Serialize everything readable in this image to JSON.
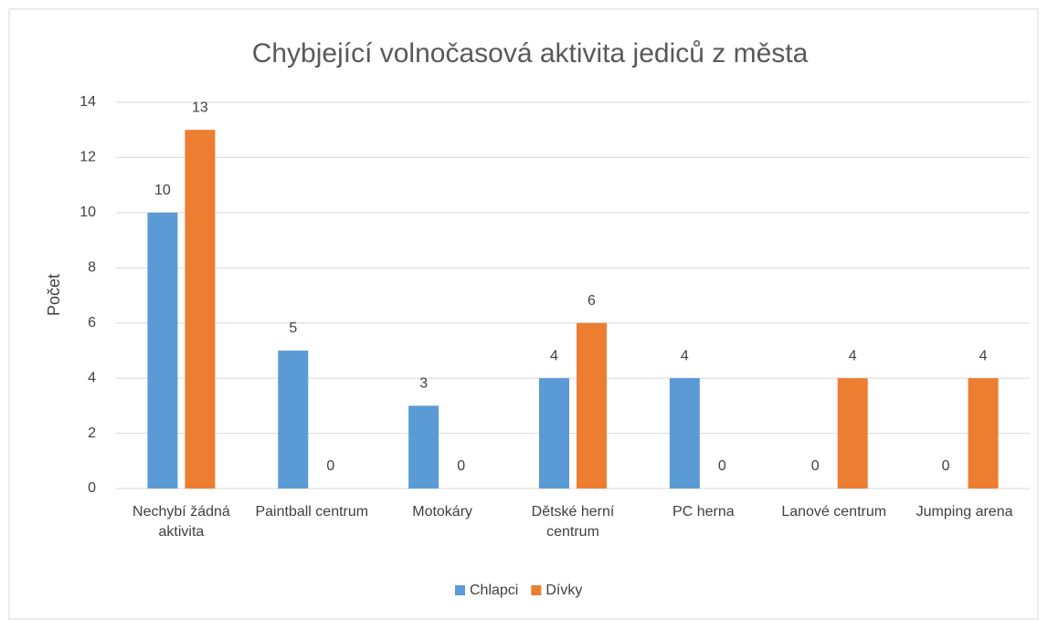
{
  "chart_data": {
    "type": "bar",
    "title": "Chybjející  volnočasová aktivita jediců z města",
    "y_label": "Počet",
    "categories": [
      "Nechybí žádná aktivita",
      "Paintball centrum",
      "Motokáry",
      "Dětské herní centrum",
      "PC herna",
      "Lanové centrum",
      "Jumping arena"
    ],
    "series": [
      {
        "name": "Chlapci",
        "color": "#5b9bd5",
        "values": [
          10,
          5,
          3,
          4,
          4,
          0,
          0
        ]
      },
      {
        "name": "Dívky",
        "color": "#ed7d31",
        "values": [
          13,
          0,
          0,
          6,
          0,
          4,
          4
        ]
      }
    ],
    "ylim": [
      0,
      14
    ],
    "yticks": [
      0,
      2,
      4,
      6,
      8,
      10,
      12,
      14
    ],
    "grid": true,
    "legend": "bottom"
  }
}
